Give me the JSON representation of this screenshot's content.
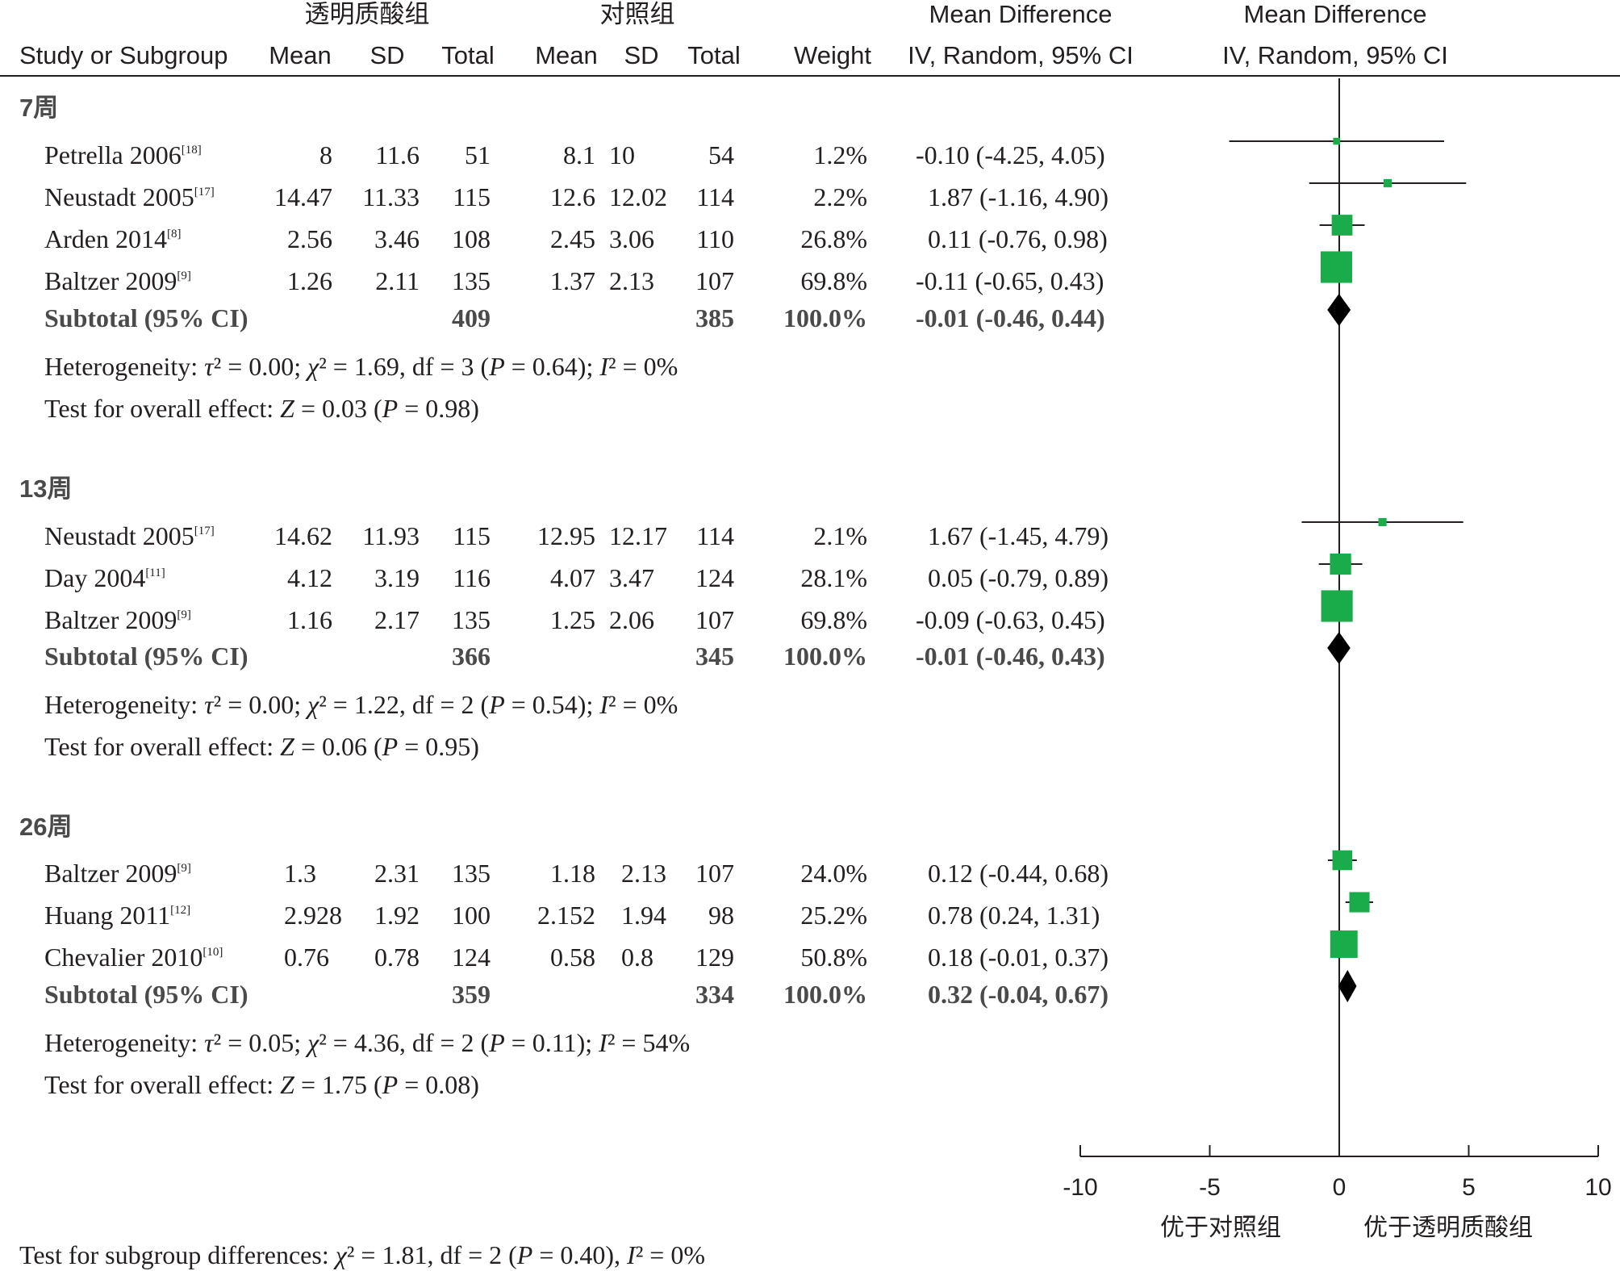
{
  "header": {
    "group1": "透明质酸组",
    "group2": "对照组",
    "md_title": "Mean Difference",
    "md_method": "IV, Random, 95% CI",
    "study_col": "Study or Subgroup",
    "mean": "Mean",
    "sd": "SD",
    "total": "Total",
    "weight": "Weight"
  },
  "subgroups": [
    {
      "label": "7周",
      "studies": [
        {
          "name": "Petrella 2006",
          "ref": "[18]",
          "m1": "8",
          "sd1": "11.6",
          "n1": "51",
          "m2": "8.1",
          "sd2": "10",
          "n2": "54",
          "weight": "1.2%",
          "ci": "-0.10 (-4.25, 4.05)"
        },
        {
          "name": "Neustadt 2005",
          "ref": "[17]",
          "m1": "14.47",
          "sd1": "11.33",
          "n1": "115",
          "m2": "12.6",
          "sd2": "12.02",
          "n2": "114",
          "weight": "2.2%",
          "ci": "1.87 (-1.16, 4.90)"
        },
        {
          "name": "Arden 2014",
          "ref": "[8]",
          "m1": "2.56",
          "sd1": "3.46",
          "n1": "108",
          "m2": "2.45",
          "sd2": "3.06",
          "n2": "110",
          "weight": "26.8%",
          "ci": "0.11 (-0.76, 0.98)"
        },
        {
          "name": "Baltzer 2009",
          "ref": "[9]",
          "m1": "1.26",
          "sd1": "2.11",
          "n1": "135",
          "m2": "1.37",
          "sd2": "2.13",
          "n2": "107",
          "weight": "69.8%",
          "ci": "-0.11 (-0.65, 0.43)"
        }
      ],
      "subtotal": {
        "label": "Subtotal (95% CI)",
        "n1": "409",
        "n2": "385",
        "weight": "100.0%",
        "ci": "-0.01 (-0.46, 0.44)"
      },
      "heterogeneity": {
        "prefix": "Heterogeneity: ",
        "tau": "τ",
        "tau_val": "² = 0.00; ",
        "chi": "χ",
        "chi_val": "² = 1.69, df = 3 (",
        "p": "P",
        "p_val": " = 0.64); ",
        "i": "I",
        "i_val": "² = 0%"
      },
      "overall": {
        "prefix": "Test for overall effect: ",
        "z": "Z",
        "z_val": " = 0.03 (",
        "p": "P",
        "p_val": " = 0.98)"
      }
    },
    {
      "label": "13周",
      "studies": [
        {
          "name": "Neustadt 2005",
          "ref": "[17]",
          "m1": "14.62",
          "sd1": "11.93",
          "n1": "115",
          "m2": "12.95",
          "sd2": "12.17",
          "n2": "114",
          "weight": "2.1%",
          "ci": "1.67 (-1.45, 4.79)"
        },
        {
          "name": "Day 2004",
          "ref": "[11]",
          "m1": "4.12",
          "sd1": "3.19",
          "n1": "116",
          "m2": "4.07",
          "sd2": "3.47",
          "n2": "124",
          "weight": "28.1%",
          "ci": "0.05 (-0.79, 0.89)"
        },
        {
          "name": "Baltzer 2009",
          "ref": "[9]",
          "m1": "1.16",
          "sd1": "2.17",
          "n1": "135",
          "m2": "1.25",
          "sd2": "2.06",
          "n2": "107",
          "weight": "69.8%",
          "ci": "-0.09 (-0.63, 0.45)"
        }
      ],
      "subtotal": {
        "label": "Subtotal (95% CI)",
        "n1": "366",
        "n2": "345",
        "weight": "100.0%",
        "ci": "-0.01 (-0.46, 0.43)"
      },
      "heterogeneity": {
        "prefix": "Heterogeneity: ",
        "tau": "τ",
        "tau_val": "² = 0.00; ",
        "chi": "χ",
        "chi_val": "² = 1.22, df = 2 (",
        "p": "P",
        "p_val": " = 0.54); ",
        "i": "I",
        "i_val": "² = 0%"
      },
      "overall": {
        "prefix": "Test for overall effect: ",
        "z": "Z",
        "z_val": " = 0.06 (",
        "p": "P",
        "p_val": " = 0.95)"
      }
    },
    {
      "label": "26周",
      "studies": [
        {
          "name": "Baltzer 2009",
          "ref": "[9]",
          "m1": "1.3",
          "sd1": "2.31",
          "n1": "135",
          "m2": "1.18",
          "sd2": "2.13",
          "n2": "107",
          "weight": "24.0%",
          "ci": "0.12 (-0.44, 0.68)"
        },
        {
          "name": "Huang 2011",
          "ref": "[12]",
          "m1": "2.928",
          "sd1": "1.92",
          "n1": "100",
          "m2": "2.152",
          "sd2": "1.94",
          "n2": "98",
          "weight": "25.2%",
          "ci": "0.78 (0.24, 1.31)"
        },
        {
          "name": "Chevalier 2010",
          "ref": "[10]",
          "m1": "0.76",
          "sd1": "0.78",
          "n1": "124",
          "m2": "0.58",
          "sd2": "0.8",
          "n2": "129",
          "weight": "50.8%",
          "ci": "0.18 (-0.01, 0.37)"
        }
      ],
      "subtotal": {
        "label": "Subtotal (95% CI)",
        "n1": "359",
        "n2": "334",
        "weight": "100.0%",
        "ci": "0.32 (-0.04, 0.67)"
      },
      "heterogeneity": {
        "prefix": "Heterogeneity: ",
        "tau": "τ",
        "tau_val": "² = 0.05; ",
        "chi": "χ",
        "chi_val": "² = 4.36, df = 2 (",
        "p": "P",
        "p_val": " = 0.11); ",
        "i": "I",
        "i_val": "² = 54%"
      },
      "overall": {
        "prefix": "Test for overall effect: ",
        "z": "Z",
        "z_val": " = 1.75 (",
        "p": "P",
        "p_val": " = 0.08)"
      }
    }
  ],
  "footer": {
    "prefix": "Test for subgroup differences: ",
    "chi": "χ",
    "chi_val": "² = 1.81, df = 2 (",
    "p": "P",
    "p_val": " = 0.40), ",
    "i": "I",
    "i_val": "² = 0%"
  },
  "axis": {
    "ticks": [
      "-10",
      "-5",
      "0",
      "5",
      "10"
    ],
    "left_label": "优于对照组",
    "right_label": "优于透明质酸组"
  },
  "colors": {
    "study_marker": "#1aab4b",
    "diamond": "#000000",
    "line": "#231f20"
  },
  "chart_data": {
    "type": "forest",
    "xlim": [
      -10,
      10
    ],
    "xticks": [
      -10,
      -5,
      0,
      5,
      10
    ],
    "groups": [
      {
        "label": "7周",
        "studies": [
          {
            "md": -0.1,
            "lo": -4.25,
            "hi": 4.05,
            "weight": 1.2
          },
          {
            "md": 1.87,
            "lo": -1.16,
            "hi": 4.9,
            "weight": 2.2
          },
          {
            "md": 0.11,
            "lo": -0.76,
            "hi": 0.98,
            "weight": 26.8
          },
          {
            "md": -0.11,
            "lo": -0.65,
            "hi": 0.43,
            "weight": 69.8
          }
        ],
        "subtotal": {
          "md": -0.01,
          "lo": -0.46,
          "hi": 0.44
        }
      },
      {
        "label": "13周",
        "studies": [
          {
            "md": 1.67,
            "lo": -1.45,
            "hi": 4.79,
            "weight": 2.1
          },
          {
            "md": 0.05,
            "lo": -0.79,
            "hi": 0.89,
            "weight": 28.1
          },
          {
            "md": -0.09,
            "lo": -0.63,
            "hi": 0.45,
            "weight": 69.8
          }
        ],
        "subtotal": {
          "md": -0.01,
          "lo": -0.46,
          "hi": 0.43
        }
      },
      {
        "label": "26周",
        "studies": [
          {
            "md": 0.12,
            "lo": -0.44,
            "hi": 0.68,
            "weight": 24.0
          },
          {
            "md": 0.78,
            "lo": 0.24,
            "hi": 1.31,
            "weight": 25.2
          },
          {
            "md": 0.18,
            "lo": -0.01,
            "hi": 0.37,
            "weight": 50.8
          }
        ],
        "subtotal": {
          "md": 0.32,
          "lo": -0.04,
          "hi": 0.67
        }
      }
    ]
  }
}
